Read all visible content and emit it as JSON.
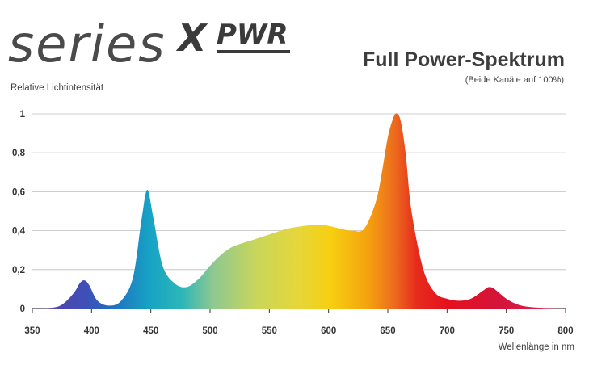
{
  "logo": {
    "series": "series",
    "x": "X",
    "pwr": "PWR"
  },
  "chart_data": {
    "type": "area",
    "title": "Full Power-Spektrum",
    "subtitle": "(Beide Kanäle auf 100%)",
    "ylabel": "Relative Lichtintensität",
    "xlabel": "Wellenlänge in nm",
    "xlim": [
      350,
      800
    ],
    "ylim": [
      0,
      1
    ],
    "xticks": [
      350,
      400,
      450,
      500,
      550,
      600,
      650,
      700,
      750,
      800
    ],
    "yticks": [
      0,
      0.2,
      0.4,
      0.6,
      0.8,
      1
    ],
    "ytick_labels": [
      "0",
      "0,2",
      "0,4",
      "0,6",
      "0,8",
      "1"
    ],
    "grid": true,
    "series": [
      {
        "x": [
          350,
          365,
          375,
          385,
          390,
          394,
          398,
          405,
          415,
          425,
          435,
          442,
          447,
          452,
          460,
          470,
          480,
          490,
          500,
          510,
          520,
          535,
          550,
          565,
          580,
          590,
          600,
          610,
          620,
          630,
          640,
          645,
          650,
          655,
          658,
          661,
          665,
          670,
          680,
          690,
          700,
          710,
          720,
          730,
          735,
          740,
          750,
          760,
          770,
          785,
          800
        ],
        "values": [
          0,
          0.003,
          0.02,
          0.08,
          0.13,
          0.145,
          0.12,
          0.04,
          0.015,
          0.04,
          0.16,
          0.45,
          0.61,
          0.47,
          0.22,
          0.13,
          0.11,
          0.15,
          0.22,
          0.28,
          0.32,
          0.35,
          0.38,
          0.41,
          0.425,
          0.43,
          0.425,
          0.41,
          0.4,
          0.41,
          0.55,
          0.7,
          0.88,
          0.985,
          1.0,
          0.96,
          0.8,
          0.5,
          0.2,
          0.08,
          0.05,
          0.04,
          0.05,
          0.09,
          0.11,
          0.1,
          0.05,
          0.02,
          0.008,
          0.002,
          0
        ]
      }
    ]
  }
}
